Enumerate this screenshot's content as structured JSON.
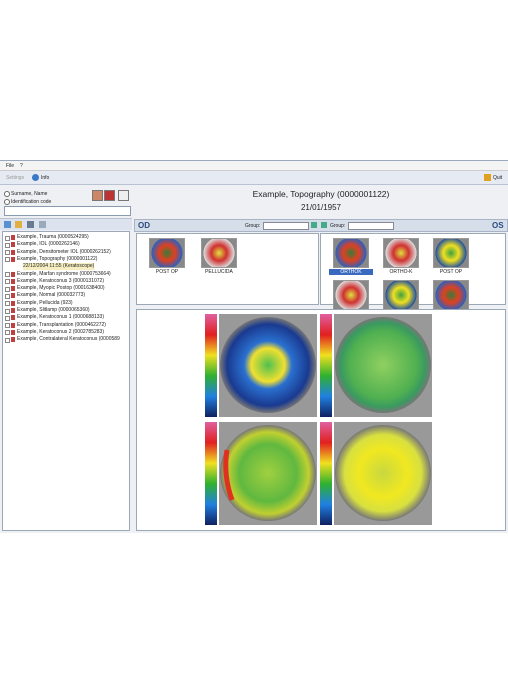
{
  "menu": [
    "File",
    "?"
  ],
  "toolbar": {
    "settings": "Settings",
    "info": "Info",
    "quit": "Quit"
  },
  "search": {
    "option_name": "Surname, Name",
    "option_id": "Identification code"
  },
  "patients": [
    "Example, Trauma (0000524295)",
    "Example, IOL (0000262146)",
    "Example, Densitometer IOL (0000262152)",
    "Example, Topography (0000001122)",
    "Example, Marfan syndrome (0000753664)",
    "Example, Keratoconus 3 (0000131072)",
    "Example, Myopic Postop (0001638400)",
    "Example, Normal (000032773)",
    "Example, Pellucida (923)",
    "Example, Slitlamp (0000065360)",
    "Example, Keratoconus 1 (0000688133)",
    "Example, Transplantation (0000462272)",
    "Example, Keratoconus 2 (0002785283)",
    "Example, Contralateral Keratoconus (0000589"
  ],
  "exam": "22/12/2004 11:55 (Keratoscope)",
  "header": {
    "title": "Example, Topography (0000001122)",
    "date": "21/01/1957"
  },
  "eyes": {
    "od": "OD",
    "os": "OS",
    "group": "Group:"
  },
  "od_thumbs": [
    "POST OP",
    "PELLUCIDA"
  ],
  "os_thumbs": [
    "ORTHOK",
    "ORTHO-K",
    "POST OP"
  ]
}
